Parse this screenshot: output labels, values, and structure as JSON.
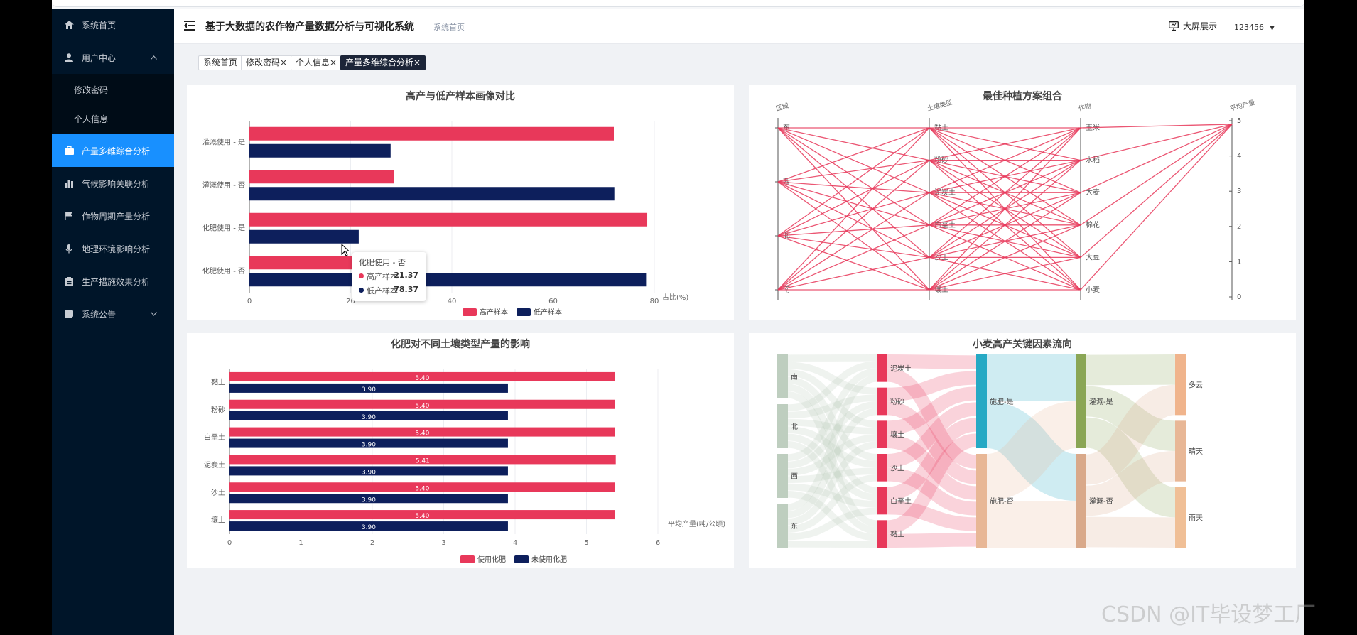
{
  "app": {
    "title": "基于大数据的农作物产量数据分析与可视化系统",
    "breadcrumb": "系统首页"
  },
  "header": {
    "big_screen_label": "大屏展示",
    "user": "123456"
  },
  "sidebar": {
    "items": [
      {
        "label": "系统首页",
        "icon": "home-icon"
      },
      {
        "label": "用户中心",
        "icon": "user-icon"
      },
      {
        "label": "产量多维综合分析",
        "icon": "briefcase-icon"
      },
      {
        "label": "气候影响关联分析",
        "icon": "bar-chart-icon"
      },
      {
        "label": "作物周期产量分析",
        "icon": "flag-icon"
      },
      {
        "label": "地理环境影响分析",
        "icon": "microphone-icon"
      },
      {
        "label": "生产措施效果分析",
        "icon": "clipboard-icon"
      },
      {
        "label": "系统公告",
        "icon": "book-icon"
      }
    ],
    "sub_items": [
      {
        "label": "修改密码"
      },
      {
        "label": "个人信息"
      }
    ]
  },
  "tags": [
    {
      "label": "系统首页"
    },
    {
      "label": "修改密码",
      "close": "×"
    },
    {
      "label": "个人信息",
      "close": "×"
    },
    {
      "label": "产量多维综合分析",
      "close": "×"
    }
  ],
  "colors": {
    "red": "#e8385a",
    "navy": "#0d1f5c",
    "sidebar": "#001529",
    "active": "#1890ff"
  },
  "tooltip": {
    "title": "化肥使用 - 否",
    "rows": [
      {
        "label": "高产样本",
        "value": "21.37",
        "color": "#e8385a"
      },
      {
        "label": "低产样本",
        "value": "78.37",
        "color": "#0d1f5c"
      }
    ]
  },
  "watermark": "CSDN @IT毕设梦工厂",
  "chart_data": [
    {
      "type": "bar",
      "orientation": "horizontal",
      "title": "高产与低产样本画像对比",
      "xlabel": "占比(%)",
      "xlim": [
        0,
        80
      ],
      "xticks": [
        "0",
        "20",
        "40",
        "60",
        "80"
      ],
      "categories": [
        "灌溉使用 - 是",
        "灌溉使用 - 否",
        "化肥使用 - 是",
        "化肥使用 - 否"
      ],
      "series": [
        {
          "name": "高产样本",
          "color": "#e8385a",
          "values": [
            72,
            28.5,
            78.6,
            21.37
          ]
        },
        {
          "name": "低产样本",
          "color": "#0d1f5c",
          "values": [
            27.9,
            72.1,
            21.6,
            78.37
          ]
        }
      ],
      "legend": "bottom",
      "grid": true
    },
    {
      "type": "parallel",
      "title": "最佳种植方案组合",
      "axes": [
        {
          "name": "区域",
          "labels": [
            "东",
            "西",
            "北",
            "南"
          ]
        },
        {
          "name": "土壤类型",
          "labels": [
            "黏土",
            "粉砂",
            "泥炭土",
            "白垩土",
            "沙土",
            "壤土"
          ]
        },
        {
          "name": "作物",
          "labels": [
            "玉米",
            "水稻",
            "大麦",
            "棉花",
            "大豆",
            "小麦"
          ]
        },
        {
          "name": "平均产量",
          "ticks": [
            "0",
            "1",
            "2",
            "3",
            "4",
            "5"
          ],
          "range": [
            0,
            5
          ]
        }
      ],
      "line_color": "#e8385a",
      "lines": "all combinations of region, soil type and crop, each with average yield ≈ 4.9"
    },
    {
      "type": "bar",
      "orientation": "horizontal",
      "title": "化肥对不同土壤类型产量的影响",
      "xlabel": "平均产量(吨/公顷)",
      "xlim": [
        0,
        6
      ],
      "xticks": [
        "0",
        "1",
        "2",
        "3",
        "4",
        "5",
        "6"
      ],
      "categories": [
        "黏土",
        "粉砂",
        "白垩土",
        "泥炭土",
        "沙土",
        "壤土"
      ],
      "series": [
        {
          "name": "使用化肥",
          "color": "#e8385a",
          "values": [
            5.4,
            5.4,
            5.4,
            5.41,
            5.4,
            5.4
          ],
          "labels": [
            "5.40",
            "5.40",
            "5.40",
            "5.41",
            "5.40",
            "5.40"
          ]
        },
        {
          "name": "未使用化肥",
          "color": "#0d1f5c",
          "values": [
            3.9,
            3.9,
            3.9,
            3.9,
            3.9,
            3.9
          ],
          "labels": [
            "3.90",
            "3.90",
            "3.90",
            "3.90",
            "3.90",
            "3.90"
          ]
        }
      ],
      "legend": "bottom",
      "grid": true
    },
    {
      "type": "sankey",
      "title": "小麦高产关键因素流向",
      "columns": [
        [
          {
            "name": "南",
            "color": "#b7c9b8"
          },
          {
            "name": "北",
            "color": "#b7c9b8"
          },
          {
            "name": "西",
            "color": "#b7c9b8"
          },
          {
            "name": "东",
            "color": "#b7c9b8"
          }
        ],
        [
          {
            "name": "泥炭土",
            "color": "#e8385a"
          },
          {
            "name": "粉砂",
            "color": "#e8385a"
          },
          {
            "name": "壤土",
            "color": "#e8385a"
          },
          {
            "name": "沙土",
            "color": "#e8385a"
          },
          {
            "name": "白垩土",
            "color": "#e8385a"
          },
          {
            "name": "黏土",
            "color": "#e8385a"
          }
        ],
        [
          {
            "name": "施肥-是",
            "color": "#26a9c4"
          },
          {
            "name": "施肥-否",
            "color": "#e8b796"
          }
        ],
        [
          {
            "name": "灌溉-是",
            "color": "#8aa655"
          },
          {
            "name": "灌溉-否",
            "color": "#d9a98a"
          }
        ],
        [
          {
            "name": "多云",
            "color": "#f0b48c"
          },
          {
            "name": "晴天",
            "color": "#e8b796"
          },
          {
            "name": "雨天",
            "color": "#f0bf96"
          }
        ]
      ]
    }
  ]
}
